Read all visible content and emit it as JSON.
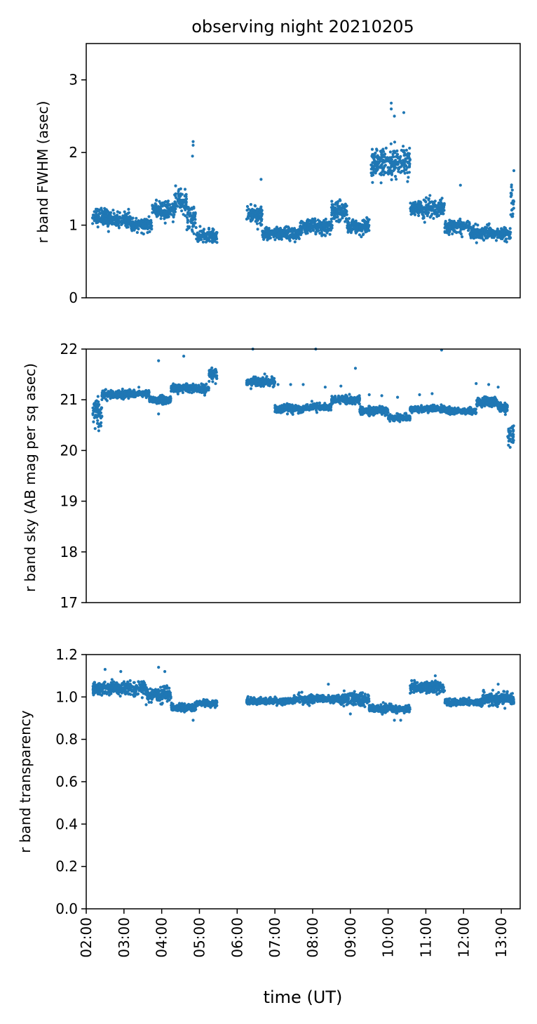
{
  "colors": {
    "series": "#1f77b4",
    "axes": "#000000"
  },
  "chart_data": [
    {
      "type": "scatter",
      "title": "observing night 20210205",
      "ylabel": "r band FWHM (asec)",
      "xlabel": "",
      "xlim": [
        "02:00",
        "13:30"
      ],
      "ylim": [
        0,
        3.5
      ],
      "yticks": [
        0,
        1,
        2,
        3
      ],
      "yticklabels": [
        "0",
        "1",
        "2",
        "3"
      ],
      "xticks_visible": false,
      "grid": false,
      "segments": [
        {
          "t0": "02:10",
          "t1": "02:35",
          "center": 1.12,
          "spread": 0.1
        },
        {
          "t0": "02:35",
          "t1": "03:10",
          "center": 1.08,
          "spread": 0.08
        },
        {
          "t0": "03:10",
          "t1": "03:45",
          "center": 1.0,
          "spread": 0.07
        },
        {
          "t0": "03:45",
          "t1": "04:20",
          "center": 1.2,
          "spread": 0.1
        },
        {
          "t0": "04:20",
          "t1": "04:40",
          "center": 1.32,
          "spread": 0.12
        },
        {
          "t0": "04:40",
          "t1": "04:55",
          "center": 1.1,
          "spread": 0.15
        },
        {
          "t0": "04:55",
          "t1": "05:28",
          "center": 0.85,
          "spread": 0.07
        },
        {
          "t0": "06:15",
          "t1": "06:40",
          "center": 1.15,
          "spread": 0.12
        },
        {
          "t0": "06:40",
          "t1": "07:40",
          "center": 0.88,
          "spread": 0.07
        },
        {
          "t0": "07:40",
          "t1": "08:30",
          "center": 0.98,
          "spread": 0.08
        },
        {
          "t0": "08:30",
          "t1": "08:55",
          "center": 1.2,
          "spread": 0.12
        },
        {
          "t0": "08:55",
          "t1": "09:30",
          "center": 0.98,
          "spread": 0.08
        },
        {
          "t0": "09:33",
          "t1": "10:35",
          "center": 1.85,
          "spread": 0.18
        },
        {
          "t0": "10:35",
          "t1": "11:30",
          "center": 1.22,
          "spread": 0.1
        },
        {
          "t0": "11:30",
          "t1": "12:10",
          "center": 0.98,
          "spread": 0.07
        },
        {
          "t0": "12:10",
          "t1": "12:55",
          "center": 0.9,
          "spread": 0.07
        },
        {
          "t0": "12:55",
          "t1": "13:15",
          "center": 0.88,
          "spread": 0.08
        },
        {
          "t0": "13:15",
          "t1": "13:20",
          "center": 1.3,
          "spread": 0.2
        }
      ],
      "outliers": [
        {
          "t": "04:50",
          "y": 2.15
        },
        {
          "t": "04:50",
          "y": 2.1
        },
        {
          "t": "04:49",
          "y": 1.95
        },
        {
          "t": "10:05",
          "y": 2.68
        },
        {
          "t": "10:05",
          "y": 2.6
        },
        {
          "t": "10:25",
          "y": 2.55
        },
        {
          "t": "10:10",
          "y": 2.5
        },
        {
          "t": "06:38",
          "y": 1.63
        },
        {
          "t": "11:55",
          "y": 1.55
        },
        {
          "t": "13:20",
          "y": 1.75
        }
      ]
    },
    {
      "type": "scatter",
      "ylabel": "r band sky (AB mag per sq asec)",
      "xlabel": "",
      "xlim": [
        "02:00",
        "13:30"
      ],
      "ylim": [
        17,
        22
      ],
      "yticks": [
        17,
        18,
        19,
        20,
        21,
        22
      ],
      "yticklabels": [
        "17",
        "18",
        "19",
        "20",
        "21",
        "22"
      ],
      "xticks_visible": false,
      "grid": false,
      "segments": [
        {
          "t0": "02:10",
          "t1": "02:25",
          "center": 20.75,
          "spread": 0.2
        },
        {
          "t0": "02:25",
          "t1": "03:00",
          "center": 21.1,
          "spread": 0.07
        },
        {
          "t0": "03:00",
          "t1": "03:40",
          "center": 21.12,
          "spread": 0.06
        },
        {
          "t0": "03:40",
          "t1": "04:15",
          "center": 21.0,
          "spread": 0.06
        },
        {
          "t0": "04:15",
          "t1": "05:15",
          "center": 21.22,
          "spread": 0.07
        },
        {
          "t0": "05:15",
          "t1": "05:28",
          "center": 21.5,
          "spread": 0.1
        },
        {
          "t0": "06:15",
          "t1": "07:00",
          "center": 21.35,
          "spread": 0.07
        },
        {
          "t0": "07:00",
          "t1": "07:45",
          "center": 20.82,
          "spread": 0.07
        },
        {
          "t0": "07:45",
          "t1": "08:30",
          "center": 20.85,
          "spread": 0.06
        },
        {
          "t0": "08:30",
          "t1": "09:15",
          "center": 21.0,
          "spread": 0.06
        },
        {
          "t0": "09:15",
          "t1": "10:00",
          "center": 20.78,
          "spread": 0.06
        },
        {
          "t0": "10:00",
          "t1": "10:35",
          "center": 20.65,
          "spread": 0.05
        },
        {
          "t0": "10:35",
          "t1": "11:30",
          "center": 20.82,
          "spread": 0.05
        },
        {
          "t0": "11:30",
          "t1": "12:20",
          "center": 20.78,
          "spread": 0.05
        },
        {
          "t0": "12:20",
          "t1": "12:55",
          "center": 20.95,
          "spread": 0.08
        },
        {
          "t0": "12:55",
          "t1": "13:10",
          "center": 20.85,
          "spread": 0.08
        },
        {
          "t0": "13:10",
          "t1": "13:20",
          "center": 20.3,
          "spread": 0.15
        }
      ],
      "outliers": [
        {
          "t": "03:55",
          "y": 21.77
        },
        {
          "t": "04:35",
          "y": 21.86
        },
        {
          "t": "06:25",
          "y": 22.0
        },
        {
          "t": "08:05",
          "y": 22.0
        },
        {
          "t": "09:08",
          "y": 21.62
        },
        {
          "t": "11:25",
          "y": 21.98
        },
        {
          "t": "07:05",
          "y": 21.3
        },
        {
          "t": "07:25",
          "y": 21.3
        },
        {
          "t": "07:45",
          "y": 21.3
        },
        {
          "t": "08:20",
          "y": 21.25
        },
        {
          "t": "08:45",
          "y": 21.27
        },
        {
          "t": "09:30",
          "y": 21.1
        },
        {
          "t": "09:50",
          "y": 21.08
        },
        {
          "t": "10:15",
          "y": 21.05
        },
        {
          "t": "10:50",
          "y": 21.1
        },
        {
          "t": "11:10",
          "y": 21.12
        },
        {
          "t": "12:20",
          "y": 21.32
        },
        {
          "t": "12:40",
          "y": 21.3
        },
        {
          "t": "12:55",
          "y": 21.25
        },
        {
          "t": "03:55",
          "y": 20.72
        }
      ]
    },
    {
      "type": "scatter",
      "ylabel": "r band transparency",
      "xlabel": "time (UT)",
      "xlim": [
        "02:00",
        "13:30"
      ],
      "ylim": [
        0.0,
        1.2
      ],
      "yticks": [
        0.0,
        0.2,
        0.4,
        0.6,
        0.8,
        1.0,
        1.2
      ],
      "yticklabels": [
        "0.0",
        "0.2",
        "0.4",
        "0.6",
        "0.8",
        "1.0",
        "1.2"
      ],
      "xticks": [
        "02:00",
        "03:00",
        "04:00",
        "05:00",
        "06:00",
        "07:00",
        "08:00",
        "09:00",
        "10:00",
        "11:00",
        "12:00",
        "13:00"
      ],
      "xticks_visible": true,
      "grid": false,
      "segments": [
        {
          "t0": "02:10",
          "t1": "03:35",
          "center": 1.04,
          "spread": 0.025
        },
        {
          "t0": "03:35",
          "t1": "04:15",
          "center": 1.01,
          "spread": 0.03
        },
        {
          "t0": "04:15",
          "t1": "04:55",
          "center": 0.95,
          "spread": 0.015
        },
        {
          "t0": "04:55",
          "t1": "05:28",
          "center": 0.97,
          "spread": 0.012
        },
        {
          "t0": "06:15",
          "t1": "07:30",
          "center": 0.98,
          "spread": 0.012
        },
        {
          "t0": "07:30",
          "t1": "08:40",
          "center": 0.99,
          "spread": 0.015
        },
        {
          "t0": "08:40",
          "t1": "09:30",
          "center": 0.99,
          "spread": 0.025
        },
        {
          "t0": "09:30",
          "t1": "10:35",
          "center": 0.945,
          "spread": 0.015
        },
        {
          "t0": "10:35",
          "t1": "11:30",
          "center": 1.045,
          "spread": 0.02
        },
        {
          "t0": "11:30",
          "t1": "12:30",
          "center": 0.975,
          "spread": 0.012
        },
        {
          "t0": "12:30",
          "t1": "13:20",
          "center": 0.99,
          "spread": 0.025
        }
      ],
      "outliers": [
        {
          "t": "02:30",
          "y": 1.13
        },
        {
          "t": "02:55",
          "y": 1.12
        },
        {
          "t": "03:55",
          "y": 1.14
        },
        {
          "t": "04:05",
          "y": 1.12
        },
        {
          "t": "04:50",
          "y": 0.89
        },
        {
          "t": "09:00",
          "y": 0.92
        },
        {
          "t": "10:10",
          "y": 0.89
        },
        {
          "t": "10:20",
          "y": 0.89
        },
        {
          "t": "11:15",
          "y": 1.1
        },
        {
          "t": "12:55",
          "y": 1.06
        },
        {
          "t": "08:25",
          "y": 1.06
        },
        {
          "t": "05:25",
          "y": 0.95
        }
      ]
    }
  ]
}
